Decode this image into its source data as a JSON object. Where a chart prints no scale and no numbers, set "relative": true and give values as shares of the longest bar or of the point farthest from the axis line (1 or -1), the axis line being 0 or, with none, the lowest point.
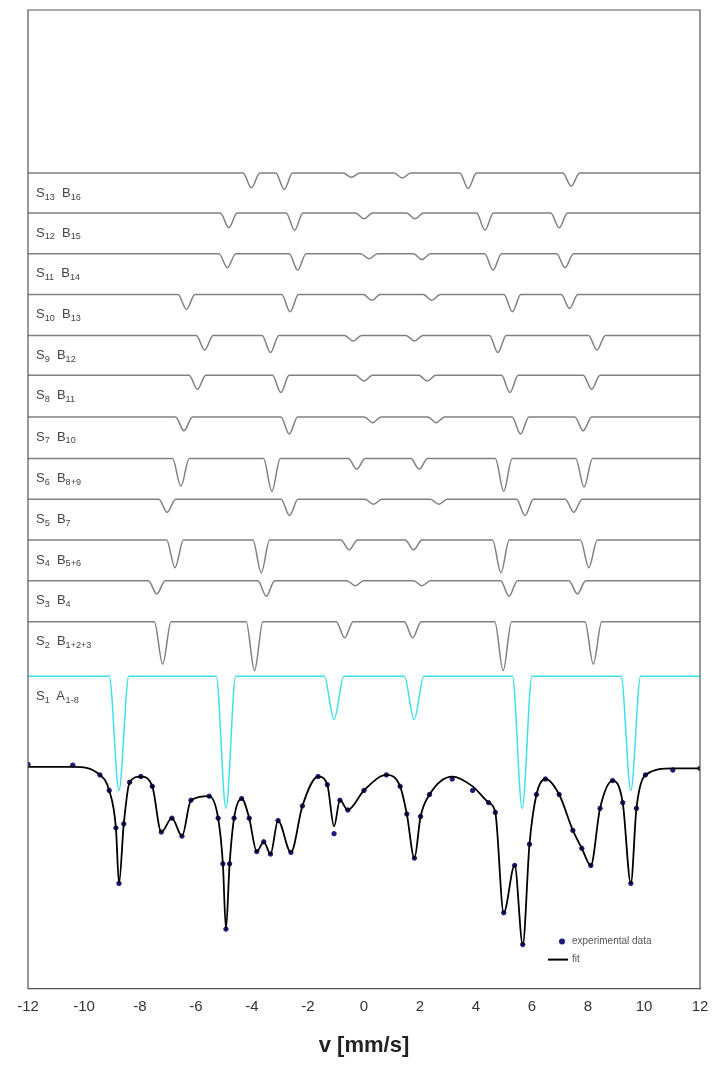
{
  "chart_data": {
    "type": "line",
    "xlabel": "v [mm/s]",
    "relative": true,
    "xlim": [
      -12,
      12
    ],
    "xticks": [
      -12,
      -10,
      -8,
      -6,
      -4,
      -2,
      0,
      2,
      4,
      6,
      8,
      10,
      12
    ],
    "legend": "bottom right",
    "series": [
      {
        "color": "#808080",
        "x": [
          -12,
          -4.32,
          -4.02,
          -3.72,
          -3.15,
          -2.85,
          -2.55,
          -0.75,
          -0.45,
          -0.15,
          1.07,
          1.37,
          1.67,
          3.42,
          3.72,
          4.02,
          7.1,
          7.4,
          7.7,
          12
        ],
        "values": [
          1,
          1,
          0.982,
          1,
          1,
          0.98,
          1,
          1,
          0.995,
          1,
          1,
          0.994,
          1,
          1,
          0.981,
          1,
          1,
          0.984,
          1,
          1
        ]
      },
      {
        "color": "#808080",
        "x": [
          -12,
          -5.13,
          -4.83,
          -4.53,
          -2.78,
          -2.48,
          -2.18,
          -0.3,
          0,
          0.3,
          1.52,
          1.82,
          2.12,
          4.02,
          4.32,
          4.62,
          6.67,
          6.97,
          7.27,
          12
        ],
        "values": [
          0.951,
          0.951,
          0.933,
          0.951,
          0.951,
          0.93,
          0.951,
          0.951,
          0.944,
          0.951,
          0.951,
          0.944,
          0.951,
          0.951,
          0.93,
          0.951,
          0.951,
          0.933,
          0.951,
          0.951
        ]
      },
      {
        "color": "#808080",
        "x": [
          -12,
          -5.18,
          -4.88,
          -4.58,
          -2.67,
          -2.37,
          -2.07,
          -0.12,
          0.18,
          0.48,
          1.77,
          2.07,
          2.37,
          4.31,
          4.61,
          4.91,
          6.88,
          7.18,
          7.48,
          12
        ],
        "values": [
          0.901,
          0.901,
          0.884,
          0.901,
          0.901,
          0.881,
          0.901,
          0.901,
          0.895,
          0.901,
          0.901,
          0.894,
          0.901,
          0.901,
          0.881,
          0.901,
          0.901,
          0.884,
          0.901,
          0.901
        ]
      },
      {
        "color": "#808080",
        "x": [
          -12,
          -6.64,
          -6.34,
          -6.04,
          -2.94,
          -2.64,
          -2.34,
          -0.02,
          0.28,
          0.58,
          2.12,
          2.42,
          2.72,
          5,
          5.3,
          5.6,
          7.04,
          7.34,
          7.64,
          12
        ],
        "values": [
          0.851,
          0.851,
          0.833,
          0.851,
          0.851,
          0.83,
          0.851,
          0.851,
          0.844,
          0.851,
          0.851,
          0.844,
          0.851,
          0.851,
          0.83,
          0.851,
          0.851,
          0.834,
          0.851,
          0.851
        ]
      },
      {
        "color": "#808080",
        "x": [
          -12,
          -5.99,
          -5.69,
          -5.39,
          -3.64,
          -3.34,
          -3.04,
          -0.69,
          -0.39,
          -0.09,
          1.5,
          1.8,
          2.1,
          4.48,
          4.78,
          5.08,
          8.02,
          8.32,
          8.62,
          12
        ],
        "values": [
          0.801,
          0.801,
          0.783,
          0.801,
          0.801,
          0.78,
          0.801,
          0.801,
          0.794,
          0.801,
          0.801,
          0.794,
          0.801,
          0.801,
          0.78,
          0.801,
          0.801,
          0.783,
          0.801,
          0.801
        ]
      },
      {
        "color": "#808080",
        "x": [
          -12,
          -6.25,
          -5.95,
          -5.65,
          -3.27,
          -2.97,
          -2.67,
          -0.3,
          0,
          0.3,
          1.96,
          2.26,
          2.56,
          4.91,
          5.21,
          5.51,
          7.83,
          8.13,
          8.43,
          12
        ],
        "values": [
          0.752,
          0.752,
          0.735,
          0.752,
          0.752,
          0.731,
          0.752,
          0.752,
          0.745,
          0.752,
          0.752,
          0.745,
          0.752,
          0.752,
          0.731,
          0.752,
          0.752,
          0.735,
          0.752,
          0.752
        ]
      },
      {
        "color": "#808080",
        "x": [
          -12,
          -6.73,
          -6.43,
          -6.13,
          -2.97,
          -2.67,
          -2.37,
          0.01,
          0.31,
          0.61,
          2.28,
          2.58,
          2.88,
          5.29,
          5.59,
          5.89,
          7.53,
          7.83,
          8.13,
          12
        ],
        "values": [
          0.701,
          0.701,
          0.684,
          0.701,
          0.701,
          0.68,
          0.701,
          0.701,
          0.694,
          0.701,
          0.701,
          0.694,
          0.701,
          0.701,
          0.68,
          0.701,
          0.701,
          0.684,
          0.701,
          0.701
        ]
      },
      {
        "color": "#808080",
        "x": [
          -12,
          -6.84,
          -6.54,
          -6.24,
          -3.59,
          -3.29,
          -2.99,
          -0.56,
          -0.26,
          0.04,
          1.67,
          1.97,
          2.27,
          4.69,
          4.99,
          5.29,
          7.56,
          7.86,
          8.16,
          12
        ],
        "values": [
          0.65,
          0.65,
          0.616,
          0.65,
          0.65,
          0.61,
          0.65,
          0.65,
          0.637,
          0.65,
          0.65,
          0.637,
          0.65,
          0.65,
          0.61,
          0.65,
          0.65,
          0.615,
          0.65,
          0.65
        ]
      },
      {
        "color": "#808080",
        "x": [
          -12,
          -7.33,
          -7.03,
          -6.73,
          -2.96,
          -2.66,
          -2.36,
          0.04,
          0.34,
          0.64,
          2.37,
          2.67,
          2.97,
          5.45,
          5.75,
          6.05,
          7.19,
          7.49,
          7.79,
          12
        ],
        "values": [
          0.6,
          0.6,
          0.584,
          0.6,
          0.6,
          0.58,
          0.6,
          0.6,
          0.594,
          0.6,
          0.6,
          0.594,
          0.6,
          0.6,
          0.58,
          0.6,
          0.6,
          0.584,
          0.6,
          0.6
        ]
      },
      {
        "color": "#808080",
        "x": [
          -12,
          -7.05,
          -6.75,
          -6.45,
          -3.97,
          -3.67,
          -3.37,
          -0.83,
          -0.53,
          -0.23,
          1.47,
          1.77,
          2.07,
          4.59,
          4.89,
          5.19,
          7.73,
          8.03,
          8.33,
          12
        ],
        "values": [
          0.55,
          0.55,
          0.516,
          0.55,
          0.55,
          0.51,
          0.55,
          0.55,
          0.538,
          0.55,
          0.55,
          0.538,
          0.55,
          0.55,
          0.51,
          0.55,
          0.55,
          0.516,
          0.55,
          0.55
        ]
      },
      {
        "color": "#808080",
        "x": [
          -12,
          -7.7,
          -7.4,
          -7.1,
          -3.79,
          -3.49,
          -3.19,
          -0.61,
          -0.31,
          -0.01,
          1.77,
          2.07,
          2.37,
          4.88,
          5.18,
          5.48,
          7.32,
          7.62,
          7.92,
          12
        ],
        "values": [
          0.5,
          0.5,
          0.484,
          0.5,
          0.5,
          0.481,
          0.5,
          0.5,
          0.494,
          0.5,
          0.5,
          0.494,
          0.5,
          0.5,
          0.481,
          0.5,
          0.5,
          0.484,
          0.5,
          0.5
        ]
      },
      {
        "color": "#808080",
        "x": [
          -12,
          -7.49,
          -7.19,
          -6.89,
          -4.21,
          -3.91,
          -3.61,
          -0.99,
          -0.69,
          -0.39,
          1.44,
          1.74,
          2.04,
          4.67,
          4.97,
          5.27,
          7.89,
          8.19,
          8.49,
          12
        ],
        "values": [
          0.45,
          0.45,
          0.398,
          0.45,
          0.45,
          0.39,
          0.45,
          0.45,
          0.43,
          0.45,
          0.45,
          0.43,
          0.45,
          0.45,
          0.39,
          0.45,
          0.45,
          0.398,
          0.45,
          0.45
        ]
      },
      {
        "color": "#40e0e8",
        "x": [
          -12,
          -9.1,
          -8.75,
          -8.4,
          -5.28,
          -4.93,
          -4.58,
          -1.42,
          -1.07,
          -0.72,
          1.44,
          1.79,
          2.14,
          5.3,
          5.65,
          6,
          9.18,
          9.53,
          9.88,
          12
        ],
        "values": [
          0.383,
          0.383,
          0.243,
          0.383,
          0.383,
          0.221,
          0.383,
          0.383,
          0.33,
          0.383,
          0.383,
          0.33,
          0.383,
          0.383,
          0.221,
          0.383,
          0.383,
          0.243,
          0.383,
          0.383
        ]
      },
      {
        "name": "experimental data",
        "type": "scatter",
        "marker": "circle",
        "color": "#1a1a80",
        "x": [
          -12,
          -10.4,
          -9.43,
          -9.1,
          -8.86,
          -8.75,
          -8.58,
          -8.37,
          -7.97,
          -7.56,
          -7.24,
          -6.86,
          -6.5,
          -6.18,
          -5.53,
          -5.21,
          -5.04,
          -4.93,
          -4.8,
          -4.64,
          -4.37,
          -4.1,
          -3.83,
          -3.58,
          -3.34,
          -3.07,
          -2.61,
          -2.2,
          -1.64,
          -1.31,
          -1.07,
          -0.86,
          -0.58,
          0,
          0.8,
          1.29,
          1.53,
          1.8,
          2.02,
          2.34,
          3.15,
          3.88,
          4.45,
          4.69,
          4.99,
          5.38,
          5.67,
          5.91,
          6.16,
          6.48,
          6.97,
          7.46,
          7.78,
          8.1,
          8.43,
          8.88,
          9.24,
          9.53,
          9.73,
          10.05,
          11.03,
          12
        ],
        "values": [
          0.275,
          0.274,
          0.262,
          0.243,
          0.197,
          0.129,
          0.202,
          0.253,
          0.26,
          0.248,
          0.192,
          0.209,
          0.187,
          0.231,
          0.236,
          0.209,
          0.153,
          0.073,
          0.153,
          0.209,
          0.233,
          0.209,
          0.168,
          0.18,
          0.165,
          0.206,
          0.167,
          0.224,
          0.26,
          0.25,
          0.19,
          0.231,
          0.219,
          0.243,
          0.262,
          0.248,
          0.214,
          0.16,
          0.211,
          0.238,
          0.257,
          0.243,
          0.228,
          0.216,
          0.093,
          0.151,
          0.054,
          0.177,
          0.238,
          0.257,
          0.238,
          0.194,
          0.172,
          0.151,
          0.221,
          0.255,
          0.228,
          0.129,
          0.221,
          0.262,
          0.268,
          0.27
        ]
      },
      {
        "name": "fit",
        "color": "#000000",
        "x": [
          -12,
          -10.4,
          -9.43,
          -9.1,
          -8.86,
          -8.75,
          -8.58,
          -8.37,
          -7.97,
          -7.56,
          -7.24,
          -6.86,
          -6.5,
          -6.18,
          -5.53,
          -5.21,
          -5.04,
          -4.93,
          -4.8,
          -4.64,
          -4.37,
          -4.1,
          -3.83,
          -3.58,
          -3.34,
          -3.07,
          -2.61,
          -2.2,
          -1.64,
          -1.31,
          -1.07,
          -0.86,
          -0.58,
          0,
          0.8,
          1.29,
          1.53,
          1.8,
          2.02,
          2.34,
          3.15,
          3.88,
          4.45,
          4.69,
          4.99,
          5.38,
          5.67,
          5.91,
          6.16,
          6.48,
          6.97,
          7.46,
          7.78,
          8.1,
          8.43,
          8.88,
          9.24,
          9.53,
          9.73,
          10.05,
          11.03,
          12
        ],
        "values": [
          0.272,
          0.272,
          0.262,
          0.243,
          0.197,
          0.129,
          0.202,
          0.253,
          0.26,
          0.248,
          0.192,
          0.209,
          0.187,
          0.231,
          0.236,
          0.209,
          0.153,
          0.073,
          0.153,
          0.209,
          0.233,
          0.209,
          0.168,
          0.18,
          0.165,
          0.206,
          0.167,
          0.224,
          0.26,
          0.25,
          0.199,
          0.231,
          0.219,
          0.243,
          0.262,
          0.248,
          0.214,
          0.16,
          0.211,
          0.238,
          0.26,
          0.248,
          0.228,
          0.216,
          0.093,
          0.151,
          0.054,
          0.177,
          0.238,
          0.257,
          0.238,
          0.194,
          0.172,
          0.151,
          0.221,
          0.255,
          0.228,
          0.129,
          0.221,
          0.262,
          0.27,
          0.27
        ]
      }
    ],
    "annotations": [
      "S$_{13}$  B$_{16}$",
      "S$_{12}$  B$_{15}$",
      "S$_{11}$  B$_{14}$",
      "S$_{10}$  B$_{13}$",
      "S$_{9}$  B$_{12}$",
      "S$_{8}$  B$_{11}$",
      "S$_{7}$  B$_{10}$",
      "S$_{6}$  B$_{8+9}$",
      "S$_{5}$  B$_{7}$",
      "S$_{4}$  B$_{5+6}$",
      "S$_{3}$  B$_{4}$",
      "S$_{2}$  B$_{1+2+3}$",
      "S$_{1}$  A$_{1-8}$"
    ]
  }
}
